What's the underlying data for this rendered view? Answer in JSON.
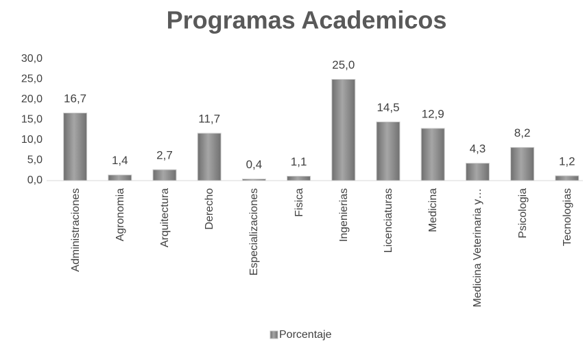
{
  "chart_data": {
    "type": "bar",
    "title": "Programas Academicos",
    "categories": [
      "Administraciones",
      "Agronomia",
      "Arquitectura",
      "Derecho",
      "Especializaciones",
      "Fisica",
      "Ingenierias",
      "Licenciaturas",
      "Medicina",
      "Medicina Veterinaria y…",
      "Psicologia",
      "Tecnologias"
    ],
    "series": [
      {
        "name": "Porcentaje",
        "color": "#8c8c8c",
        "values": [
          16.7,
          1.4,
          2.7,
          11.7,
          0.4,
          1.1,
          25.0,
          14.5,
          12.9,
          4.3,
          8.2,
          1.2
        ],
        "value_labels": [
          "16,7",
          "1,4",
          "2,7",
          "11,7",
          "0,4",
          "1,1",
          "25,0",
          "14,5",
          "12,9",
          "4,3",
          "8,2",
          "1,2"
        ]
      }
    ],
    "ylim": [
      0,
      30
    ],
    "yticks": [
      {
        "value": 0,
        "label": "0,0"
      },
      {
        "value": 5,
        "label": "5,0"
      },
      {
        "value": 10,
        "label": "10,0"
      },
      {
        "value": 15,
        "label": "15,0"
      },
      {
        "value": 20,
        "label": "20,0"
      },
      {
        "value": 25,
        "label": "25,0"
      },
      {
        "value": 30,
        "label": "30,0"
      }
    ],
    "legend": "bottom",
    "grid": false
  }
}
